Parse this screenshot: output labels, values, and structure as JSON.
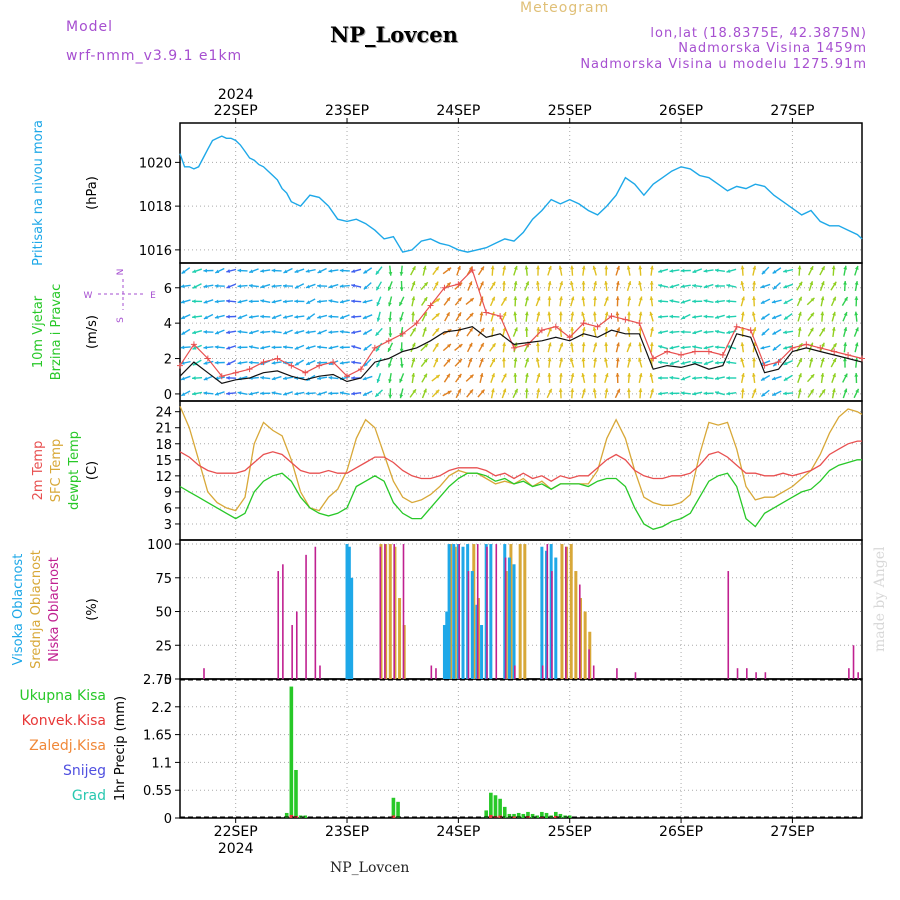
{
  "header": {
    "model_label": "Model",
    "model_name": "wrf-nmm_v3.9.1 e1km",
    "product": "Meteogram",
    "station": "NP_Lovcen",
    "lonlat": "lon,lat (18.8375E, 42.3875N)",
    "elevation": "Nadmorska Visina 1459m",
    "model_elevation": "Nadmorska Visina u modelu 1275.91m",
    "footer_station": "NP_Lovcen",
    "watermark": "made by Angel"
  },
  "colors": {
    "pressure": "#1ea8e8",
    "wind_speed": "#111111",
    "wind_gust": "#e85050",
    "t2m": "#e85050",
    "sfc_temp": "#d8a838",
    "dewpoint": "#28c828",
    "cloud_high": "#1ea8e8",
    "cloud_mid": "#d8a838",
    "cloud_low": "#c02090",
    "precip_total": "#28c828",
    "precip_conv": "#e83838",
    "precip_frozen": "#f08838",
    "precip_snow": "#5050e0",
    "precip_graupel": "#28c8b0"
  },
  "time_axis": {
    "top_year": "2024",
    "bottom_year": "2024",
    "days": [
      "22SEP",
      "23SEP",
      "24SEP",
      "25SEP",
      "26SEP",
      "27SEP"
    ],
    "day_positions_hours": [
      12,
      36,
      60,
      84,
      108,
      132
    ],
    "range_hours": [
      0,
      147
    ]
  },
  "chart_data": [
    {
      "type": "line",
      "panel": "pressure",
      "ylabel_lines": [
        "Pritisak na nivou mora"
      ],
      "unit": "(hPa)",
      "ylim": [
        1015.4,
        1021.8
      ],
      "yticks": [
        1016,
        1018,
        1020
      ],
      "grid": true,
      "x_hours": [
        0,
        1,
        2,
        3,
        4,
        5,
        6,
        7,
        8,
        9,
        10,
        11,
        12,
        13,
        14,
        15,
        16,
        17,
        18,
        19,
        20,
        21,
        22,
        23,
        24,
        26,
        28,
        30,
        32,
        34,
        36,
        38,
        40,
        42,
        44,
        46,
        48,
        50,
        52,
        54,
        56,
        58,
        60,
        62,
        64,
        66,
        68,
        70,
        72,
        74,
        76,
        78,
        80,
        82,
        84,
        86,
        88,
        90,
        92,
        94,
        96,
        98,
        100,
        102,
        104,
        106,
        108,
        110,
        112,
        114,
        116,
        118,
        120,
        122,
        124,
        126,
        128,
        130,
        132,
        134,
        136,
        138,
        140,
        142,
        144,
        146,
        147
      ],
      "series": [
        {
          "values": [
            1020.4,
            1019.8,
            1019.8,
            1019.7,
            1019.8,
            1020.2,
            1020.6,
            1021.0,
            1021.1,
            1021.2,
            1021.1,
            1021.1,
            1021.0,
            1020.8,
            1020.5,
            1020.2,
            1020.1,
            1019.9,
            1019.8,
            1019.6,
            1019.4,
            1019.2,
            1018.8,
            1018.6,
            1018.2,
            1018.0,
            1018.5,
            1018.4,
            1018.0,
            1017.4,
            1017.3,
            1017.4,
            1017.2,
            1016.9,
            1016.5,
            1016.6,
            1015.9,
            1016.0,
            1016.4,
            1016.5,
            1016.3,
            1016.2,
            1016.0,
            1015.9,
            1016.0,
            1016.1,
            1016.3,
            1016.5,
            1016.4,
            1016.8,
            1017.4,
            1017.8,
            1018.3,
            1018.1,
            1018.3,
            1018.1,
            1017.8,
            1017.6,
            1018.0,
            1018.5,
            1019.3,
            1019.0,
            1018.5,
            1019.0,
            1019.3,
            1019.6,
            1019.8,
            1019.7,
            1019.4,
            1019.3,
            1019.0,
            1018.7,
            1018.9,
            1018.8,
            1019.0,
            1018.9,
            1018.5,
            1018.2,
            1017.9,
            1017.6,
            1017.8,
            1017.3,
            1017.1,
            1017.1,
            1016.9,
            1016.7,
            1016.5
          ]
        }
      ]
    },
    {
      "type": "line",
      "panel": "wind",
      "ylabel_lines": [
        "10m Vjetar",
        "Brzina i Pravac"
      ],
      "unit": "(m/s)",
      "ylim": [
        -0.4,
        7.4
      ],
      "yticks": [
        0,
        2,
        4,
        6
      ],
      "compass_legend": {
        "N": "N",
        "E": "E",
        "S": "S",
        "W": "W"
      },
      "x_hours": [
        0,
        3,
        6,
        9,
        12,
        15,
        18,
        21,
        24,
        27,
        30,
        33,
        36,
        39,
        42,
        45,
        48,
        51,
        54,
        57,
        60,
        63,
        66,
        69,
        72,
        75,
        78,
        81,
        84,
        87,
        90,
        93,
        96,
        99,
        102,
        105,
        108,
        111,
        114,
        117,
        120,
        123,
        126,
        129,
        132,
        135,
        138,
        141,
        144,
        147
      ],
      "series": [
        {
          "name": "speed",
          "values": [
            1.0,
            1.8,
            1.2,
            0.6,
            0.8,
            0.9,
            1.2,
            1.3,
            1.0,
            0.8,
            1.0,
            1.1,
            0.7,
            0.9,
            1.8,
            2.0,
            2.4,
            2.6,
            3.0,
            3.5,
            3.6,
            3.8,
            3.2,
            3.4,
            2.8,
            2.9,
            3.0,
            3.2,
            3.0,
            3.4,
            3.2,
            3.6,
            3.4,
            3.4,
            1.4,
            1.6,
            1.5,
            1.7,
            1.4,
            1.6,
            3.4,
            3.2,
            1.2,
            1.4,
            2.4,
            2.6,
            2.4,
            2.2,
            2.0,
            1.8
          ]
        },
        {
          "name": "gust",
          "values": [
            1.6,
            2.8,
            2.0,
            1.0,
            1.2,
            1.4,
            1.8,
            2.0,
            1.6,
            1.2,
            1.6,
            1.8,
            1.0,
            1.4,
            2.6,
            3.0,
            3.4,
            4.0,
            5.0,
            6.0,
            6.2,
            7.0,
            4.6,
            4.4,
            2.6,
            2.8,
            3.6,
            3.8,
            3.2,
            4.0,
            3.8,
            4.4,
            4.2,
            4.0,
            2.0,
            2.4,
            2.2,
            2.4,
            2.4,
            2.2,
            3.8,
            3.6,
            1.6,
            1.8,
            2.6,
            2.8,
            2.6,
            2.4,
            2.2,
            2.0
          ]
        }
      ],
      "arrow_direction_deg": [
        70,
        75,
        80,
        80,
        85,
        85,
        85,
        80,
        75,
        70,
        80,
        85,
        90,
        60,
        30,
        10,
        200,
        210,
        220,
        225,
        215,
        205,
        200,
        195,
        190,
        185,
        190,
        185,
        180,
        180,
        185,
        190,
        185,
        180,
        90,
        85,
        80,
        85,
        90,
        90,
        180,
        185,
        60,
        70,
        200,
        210,
        200,
        195,
        190,
        190
      ]
    },
    {
      "type": "line",
      "panel": "temperature",
      "ylabel_lines": [
        "2m Temp",
        "SFC Temp",
        "dewpt Temp"
      ],
      "unit": "(C)",
      "ylim": [
        0,
        26
      ],
      "yticks": [
        3,
        6,
        9,
        12,
        15,
        18,
        21,
        24
      ],
      "x_hours": [
        0,
        2,
        4,
        6,
        8,
        10,
        12,
        14,
        16,
        18,
        20,
        22,
        24,
        26,
        28,
        30,
        32,
        34,
        36,
        38,
        40,
        42,
        44,
        46,
        48,
        50,
        52,
        54,
        56,
        58,
        60,
        62,
        64,
        66,
        68,
        70,
        72,
        74,
        76,
        78,
        80,
        82,
        84,
        86,
        88,
        90,
        92,
        94,
        96,
        98,
        100,
        102,
        104,
        106,
        108,
        110,
        112,
        114,
        116,
        118,
        120,
        122,
        124,
        126,
        128,
        130,
        132,
        134,
        136,
        138,
        140,
        142,
        144,
        146,
        147
      ],
      "series": [
        {
          "name": "2m Temp",
          "values": [
            16.5,
            15.5,
            14.0,
            13.0,
            12.5,
            12.5,
            12.5,
            13.0,
            14.5,
            16.0,
            16.5,
            16.0,
            14.5,
            13.0,
            12.5,
            12.5,
            13.0,
            12.5,
            12.5,
            13.5,
            14.5,
            15.5,
            15.5,
            14.5,
            13.0,
            12.0,
            11.5,
            11.5,
            12.0,
            13.0,
            13.5,
            13.5,
            13.5,
            13.0,
            12.0,
            12.5,
            11.5,
            12.5,
            11.5,
            12.0,
            11.0,
            12.0,
            11.5,
            12.0,
            12.0,
            13.5,
            15.0,
            16.0,
            15.0,
            13.0,
            12.0,
            11.5,
            11.5,
            12.0,
            12.0,
            12.5,
            14.0,
            16.0,
            16.5,
            15.5,
            14.0,
            12.5,
            12.5,
            12.0,
            12.0,
            12.5,
            12.0,
            12.5,
            13.0,
            14.0,
            16.0,
            17.0,
            18.0,
            18.5,
            18.5
          ]
        },
        {
          "name": "SFC Temp",
          "values": [
            25.0,
            21.0,
            15.0,
            9.0,
            7.0,
            6.0,
            5.5,
            8.0,
            18.0,
            22.0,
            20.5,
            19.5,
            15.0,
            9.0,
            6.0,
            5.5,
            8.0,
            9.5,
            13.0,
            19.0,
            22.5,
            21.0,
            16.0,
            11.0,
            8.0,
            7.0,
            7.5,
            8.5,
            10.0,
            12.0,
            13.0,
            12.5,
            12.5,
            11.5,
            10.5,
            11.0,
            10.5,
            11.5,
            10.0,
            11.0,
            9.5,
            10.5,
            10.5,
            10.5,
            10.5,
            13.0,
            19.0,
            22.5,
            19.0,
            13.0,
            8.0,
            7.0,
            6.5,
            6.5,
            7.0,
            8.5,
            16.0,
            22.0,
            21.5,
            22.0,
            17.0,
            10.0,
            7.5,
            8.0,
            8.0,
            9.0,
            10.0,
            11.5,
            13.0,
            16.0,
            20.0,
            23.0,
            24.5,
            24.0,
            23.5
          ]
        },
        {
          "name": "dewpt Temp",
          "values": [
            10.0,
            9.0,
            8.0,
            7.0,
            6.0,
            5.0,
            4.0,
            5.0,
            9.0,
            11.0,
            12.0,
            12.5,
            11.0,
            8.0,
            6.0,
            5.0,
            4.5,
            5.0,
            6.0,
            10.0,
            11.0,
            12.0,
            11.0,
            7.0,
            5.0,
            4.0,
            4.0,
            6.0,
            8.0,
            10.0,
            11.5,
            12.5,
            12.5,
            12.0,
            11.0,
            11.5,
            10.5,
            11.0,
            10.0,
            10.5,
            9.5,
            10.5,
            10.5,
            10.5,
            10.0,
            11.0,
            11.5,
            11.5,
            10.0,
            6.0,
            3.0,
            2.0,
            2.5,
            3.5,
            4.0,
            5.0,
            8.0,
            11.0,
            12.0,
            12.5,
            10.0,
            4.0,
            2.5,
            5.0,
            6.0,
            7.0,
            8.0,
            9.0,
            9.5,
            11.0,
            13.0,
            14.0,
            14.5,
            15.0,
            15.0
          ]
        }
      ]
    },
    {
      "type": "bar",
      "panel": "clouds",
      "ylabel_lines": [
        "Visoka Oblacnost",
        "Srednja Oblacnost",
        "Niska Oblacnost"
      ],
      "unit": "(%)",
      "ylim": [
        0,
        103
      ],
      "yticks": [
        0,
        25,
        50,
        75,
        100
      ],
      "series": [
        {
          "name": "Visoka Oblacnost",
          "x": [
            36,
            36.5,
            37,
            57,
            57.5,
            58,
            59,
            60,
            61,
            62,
            63,
            64,
            65,
            66,
            67,
            70,
            71,
            72,
            78,
            79,
            80,
            81
          ],
          "values": [
            100,
            98,
            75,
            40,
            50,
            100,
            100,
            100,
            98,
            100,
            80,
            55,
            40,
            100,
            100,
            100,
            90,
            85,
            98,
            95,
            100,
            90
          ]
        },
        {
          "name": "Srednja Oblacnost",
          "x": [
            43,
            44,
            45,
            46,
            47,
            48,
            58,
            59,
            63,
            64,
            70,
            71,
            73,
            74,
            82,
            83,
            84,
            85,
            86,
            87,
            88
          ],
          "values": [
            100,
            100,
            100,
            98,
            60,
            40,
            100,
            98,
            100,
            60,
            80,
            100,
            100,
            100,
            100,
            98,
            100,
            80,
            60,
            50,
            35
          ]
        },
        {
          "name": "Niska Oblacnost",
          "x": [
            5,
            21,
            22,
            24,
            25,
            27,
            29,
            30,
            43,
            44,
            46,
            48,
            54,
            55,
            60,
            62,
            64,
            66,
            68,
            70,
            72,
            78,
            79,
            80,
            83,
            86,
            88,
            89,
            94,
            98,
            118,
            120,
            122,
            124,
            126,
            144,
            145,
            146
          ],
          "values": [
            8,
            80,
            85,
            40,
            50,
            92,
            98,
            10,
            98,
            100,
            100,
            100,
            10,
            8,
            100,
            80,
            100,
            98,
            100,
            90,
            10,
            10,
            100,
            80,
            98,
            70,
            22,
            10,
            8,
            5,
            80,
            8,
            8,
            5,
            5,
            8,
            25,
            5
          ]
        }
      ]
    },
    {
      "type": "bar",
      "panel": "precipitation",
      "legend": [
        "Ukupna Kisa",
        "Konvek.Kisa",
        "Zaledj.Kisa",
        "Snijeg",
        "Grad"
      ],
      "ylabel_lines": [
        "1hr Precip (mm)"
      ],
      "ylim": [
        0,
        2.75
      ],
      "yticks": [
        0,
        0.55,
        1.1,
        1.65,
        2.2,
        2.75
      ],
      "series": [
        {
          "name": "Ukupna Kisa",
          "x": [
            23,
            24,
            25,
            26,
            27,
            46,
            47,
            66,
            67,
            68,
            69,
            70,
            71,
            72,
            73,
            74,
            75,
            76,
            77,
            78,
            79,
            80,
            81,
            82,
            83,
            84
          ],
          "values": [
            0.1,
            2.6,
            0.95,
            0.05,
            0.05,
            0.4,
            0.32,
            0.15,
            0.5,
            0.45,
            0.38,
            0.22,
            0.08,
            0.08,
            0.1,
            0.08,
            0.12,
            0.08,
            0.05,
            0.12,
            0.1,
            0.05,
            0.12,
            0.08,
            0.05,
            0.05
          ]
        },
        {
          "name": "Konvek.Kisa",
          "x": [
            24,
            25,
            46,
            67,
            68,
            69,
            72,
            75,
            78,
            81
          ],
          "values": [
            0.06,
            0.04,
            0.05,
            0.06,
            0.04,
            0.05,
            0.03,
            0.04,
            0.03,
            0.04
          ]
        }
      ]
    }
  ]
}
